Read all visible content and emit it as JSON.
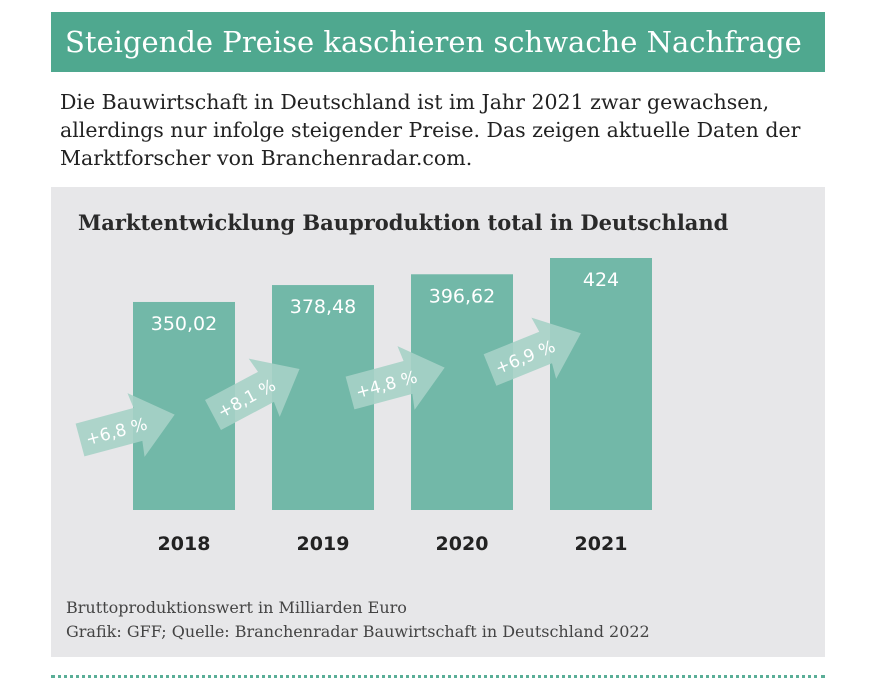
{
  "header": {
    "title": "Steigende Preise kaschieren schwache Nachfrage"
  },
  "intro": "Die Bauwirtschaft in Deutschland ist im Jahr 2021 zwar gewachsen, allerdings nur infolge steigender Preise. Das zeigen aktuelle Daten der Marktforscher von Branchenradar.com.",
  "chart_data": {
    "type": "bar",
    "title": "Marktentwicklung Bauproduktion total in Deutschland",
    "categories": [
      "2018",
      "2019",
      "2020",
      "2021"
    ],
    "values": [
      350.02,
      378.48,
      396.62,
      424
    ],
    "value_labels": [
      "350,02",
      "378,48",
      "396,62",
      "424"
    ],
    "growth_labels": [
      "+6,8 %",
      "+8,1 %",
      "+4,8 %",
      "+6,9 %"
    ],
    "ylim": [
      0,
      424
    ],
    "grid": false,
    "colors": {
      "bar": "#72b8a8",
      "arrow": "#a6d1c6",
      "header": "#4fa88f",
      "panel": "#e7e7e9"
    }
  },
  "footer": {
    "unit": "Bruttoproduktionswert in Milliarden Euro",
    "source": "Grafik: GFF; Quelle: Branchenradar Bauwirtschaft in Deutschland 2022"
  }
}
